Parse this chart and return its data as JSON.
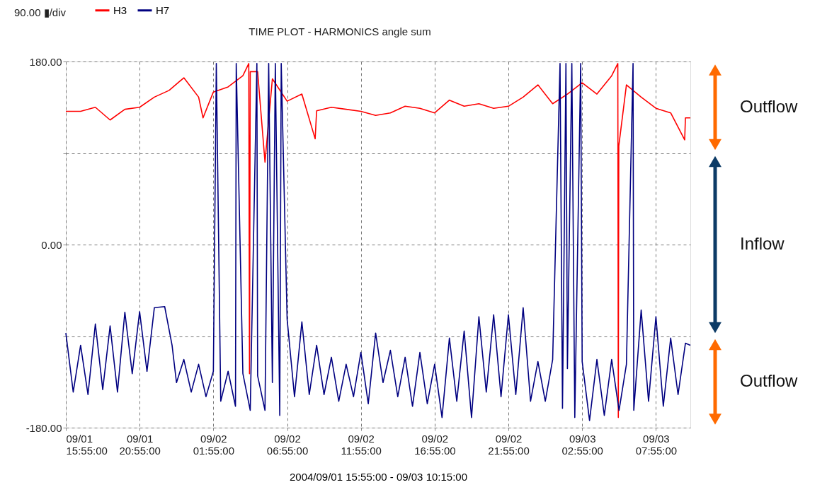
{
  "chart_data": {
    "type": "line",
    "title": "TIME PLOT - HARMONICS  angle sum",
    "xlabel": "2004/09/01 15:55:00 - 09/03 10:15:00",
    "annotations": [
      "90.00 ▮/div",
      "Outflow",
      "Inflow",
      "Outflow"
    ],
    "xlim": [
      "2004-09-01T15:55",
      "2004-09-03T10:15"
    ],
    "xticks": [
      {
        "value": "2004-09-01T15:55",
        "label": "09/01\n15:55:00"
      },
      {
        "value": "2004-09-01T20:55",
        "label": "09/01\n20:55:00"
      },
      {
        "value": "2004-09-02T01:55",
        "label": "09/02\n01:55:00"
      },
      {
        "value": "2004-09-02T06:55",
        "label": "09/02\n06:55:00"
      },
      {
        "value": "2004-09-02T11:55",
        "label": "09/02\n11:55:00"
      },
      {
        "value": "2004-09-02T16:55",
        "label": "09/02\n16:55:00"
      },
      {
        "value": "2004-09-02T21:55",
        "label": "09/02\n21:55:00"
      },
      {
        "value": "2004-09-03T02:55",
        "label": "09/03\n02:55:00"
      },
      {
        "value": "2004-09-03T07:55",
        "label": "09/03\n07:55:00"
      }
    ],
    "ylim": [
      -180,
      180
    ],
    "yticks": [
      {
        "value": -180,
        "label": "-180.00"
      },
      {
        "value": -90,
        "label": null
      },
      {
        "value": 0,
        "label": "0.00"
      },
      {
        "value": 90,
        "label": null
      },
      {
        "value": 180,
        "label": "180.00"
      }
    ],
    "grid": true,
    "legend": "top left",
    "marker": "none",
    "line_style": "solid",
    "series": [
      {
        "name": "H3",
        "color": "#ff0000",
        "x": [
          "2004-09-01T15:55",
          "2004-09-01T16:55",
          "2004-09-01T17:55",
          "2004-09-01T18:55",
          "2004-09-01T19:55",
          "2004-09-01T20:55",
          "2004-09-01T21:55",
          "2004-09-01T22:55",
          "2004-09-01T23:55",
          "2004-09-02T00:55",
          "2004-09-02T01:13",
          "2004-09-02T01:55",
          "2004-09-02T02:55",
          "2004-09-02T03:55",
          "2004-09-02T04:19",
          "2004-09-02T04:22",
          "2004-09-02T04:25",
          "2004-09-02T04:55",
          "2004-09-02T05:25",
          "2004-09-02T05:55",
          "2004-09-02T06:55",
          "2004-09-02T07:55",
          "2004-09-02T08:49",
          "2004-09-02T08:55",
          "2004-09-02T09:55",
          "2004-09-02T10:55",
          "2004-09-02T11:55",
          "2004-09-02T12:55",
          "2004-09-02T13:55",
          "2004-09-02T14:55",
          "2004-09-02T15:55",
          "2004-09-02T16:55",
          "2004-09-02T17:55",
          "2004-09-02T18:55",
          "2004-09-02T19:55",
          "2004-09-02T20:55",
          "2004-09-02T21:55",
          "2004-09-02T22:55",
          "2004-09-02T23:55",
          "2004-09-03T00:55",
          "2004-09-03T01:55",
          "2004-09-03T02:55",
          "2004-09-03T03:55",
          "2004-09-03T04:55",
          "2004-09-03T05:20",
          "2004-09-03T05:22",
          "2004-09-03T05:24",
          "2004-09-03T05:55",
          "2004-09-03T06:55",
          "2004-09-03T07:55",
          "2004-09-03T08:55",
          "2004-09-03T09:52",
          "2004-09-03T09:55",
          "2004-09-03T10:15"
        ],
        "values": [
          131,
          131,
          135,
          122.5,
          133,
          135,
          145,
          151.6,
          164,
          145,
          124.6,
          150,
          155,
          166,
          178,
          -127,
          170,
          170,
          81,
          163,
          141,
          148,
          104,
          131.5,
          135,
          133,
          131,
          127,
          129.5,
          136,
          134,
          129.5,
          142,
          136,
          138.5,
          134,
          136,
          145,
          157,
          138.5,
          148,
          159,
          148,
          166,
          178,
          -170,
          97,
          157,
          145,
          134,
          129.5,
          103,
          124.6,
          124.6
        ]
      },
      {
        "name": "H7",
        "color": "#000080",
        "x": [
          "2004-09-01T15:55",
          "2004-09-01T16:25",
          "2004-09-01T16:55",
          "2004-09-01T17:25",
          "2004-09-01T17:55",
          "2004-09-01T18:25",
          "2004-09-01T18:55",
          "2004-09-01T19:25",
          "2004-09-01T19:55",
          "2004-09-01T20:25",
          "2004-09-01T20:55",
          "2004-09-01T21:25",
          "2004-09-01T21:55",
          "2004-09-01T22:37",
          "2004-09-01T23:07",
          "2004-09-01T23:25",
          "2004-09-01T23:55",
          "2004-09-02T00:25",
          "2004-09-02T00:55",
          "2004-09-02T01:25",
          "2004-09-02T01:55",
          "2004-09-02T02:07",
          "2004-09-02T02:25",
          "2004-09-02T02:55",
          "2004-09-02T03:25",
          "2004-09-02T03:28",
          "2004-09-02T03:55",
          "2004-09-02T04:25",
          "2004-09-02T04:52",
          "2004-09-02T04:55",
          "2004-09-02T05:25",
          "2004-09-02T05:40",
          "2004-09-02T05:55",
          "2004-09-02T06:07",
          "2004-09-02T06:25",
          "2004-09-02T06:31",
          "2004-09-02T06:55",
          "2004-09-02T07:25",
          "2004-09-02T07:55",
          "2004-09-02T08:25",
          "2004-09-02T08:55",
          "2004-09-02T09:25",
          "2004-09-02T09:55",
          "2004-09-02T10:25",
          "2004-09-02T10:55",
          "2004-09-02T11:25",
          "2004-09-02T11:55",
          "2004-09-02T12:25",
          "2004-09-02T12:55",
          "2004-09-02T13:25",
          "2004-09-02T13:55",
          "2004-09-02T14:25",
          "2004-09-02T14:55",
          "2004-09-02T15:25",
          "2004-09-02T15:55",
          "2004-09-02T16:25",
          "2004-09-02T16:55",
          "2004-09-02T17:25",
          "2004-09-02T17:55",
          "2004-09-02T18:25",
          "2004-09-02T18:55",
          "2004-09-02T19:25",
          "2004-09-02T19:55",
          "2004-09-02T20:25",
          "2004-09-02T20:55",
          "2004-09-02T21:25",
          "2004-09-02T21:55",
          "2004-09-02T22:25",
          "2004-09-02T22:55",
          "2004-09-02T23:25",
          "2004-09-02T23:55",
          "2004-09-03T00:25",
          "2004-09-03T00:55",
          "2004-09-03T01:25",
          "2004-09-03T01:35",
          "2004-09-03T01:49",
          "2004-09-03T01:55",
          "2004-09-03T02:13",
          "2004-09-03T02:25",
          "2004-09-03T02:49",
          "2004-09-03T02:55",
          "2004-09-03T03:25",
          "2004-09-03T03:55",
          "2004-09-03T04:25",
          "2004-09-03T04:55",
          "2004-09-03T05:25",
          "2004-09-03T05:55",
          "2004-09-03T06:22",
          "2004-09-03T06:25",
          "2004-09-03T06:55",
          "2004-09-03T07:25",
          "2004-09-03T07:55",
          "2004-09-03T08:25",
          "2004-09-03T08:55",
          "2004-09-03T09:25",
          "2004-09-03T09:55",
          "2004-09-03T10:15"
        ],
        "values": [
          -87,
          -145,
          -99,
          -147.5,
          -78,
          -142.6,
          -80,
          -145,
          -66.5,
          -127,
          -66,
          -124.6,
          -62,
          -61,
          -99,
          -135.7,
          -113,
          -145,
          -117.7,
          -149.5,
          -124.6,
          178,
          -154,
          -124.6,
          -159,
          178,
          -126.7,
          -163,
          178,
          -129,
          -163,
          178,
          -135.7,
          178,
          -168,
          178,
          -73.4,
          -149.5,
          -76,
          -147.5,
          -99,
          -147.5,
          -110.8,
          -154,
          -117.7,
          -149.5,
          -106,
          -156.5,
          -87,
          -135.7,
          -104,
          -149.5,
          -110.8,
          -159,
          -106,
          -156.5,
          -117.7,
          -170,
          -92,
          -154,
          -85,
          -170,
          -71,
          -145,
          -69,
          -149.5,
          -69,
          -147.5,
          -62,
          -154,
          -115,
          -154,
          -113,
          178,
          -161,
          178,
          -122,
          178,
          -170,
          178,
          -115,
          -173,
          -113,
          -168,
          -113,
          -163,
          -117.7,
          178,
          -163,
          -64.4,
          -154,
          -71,
          -159,
          -92,
          -147.5,
          -97,
          -99
        ]
      }
    ]
  }
}
